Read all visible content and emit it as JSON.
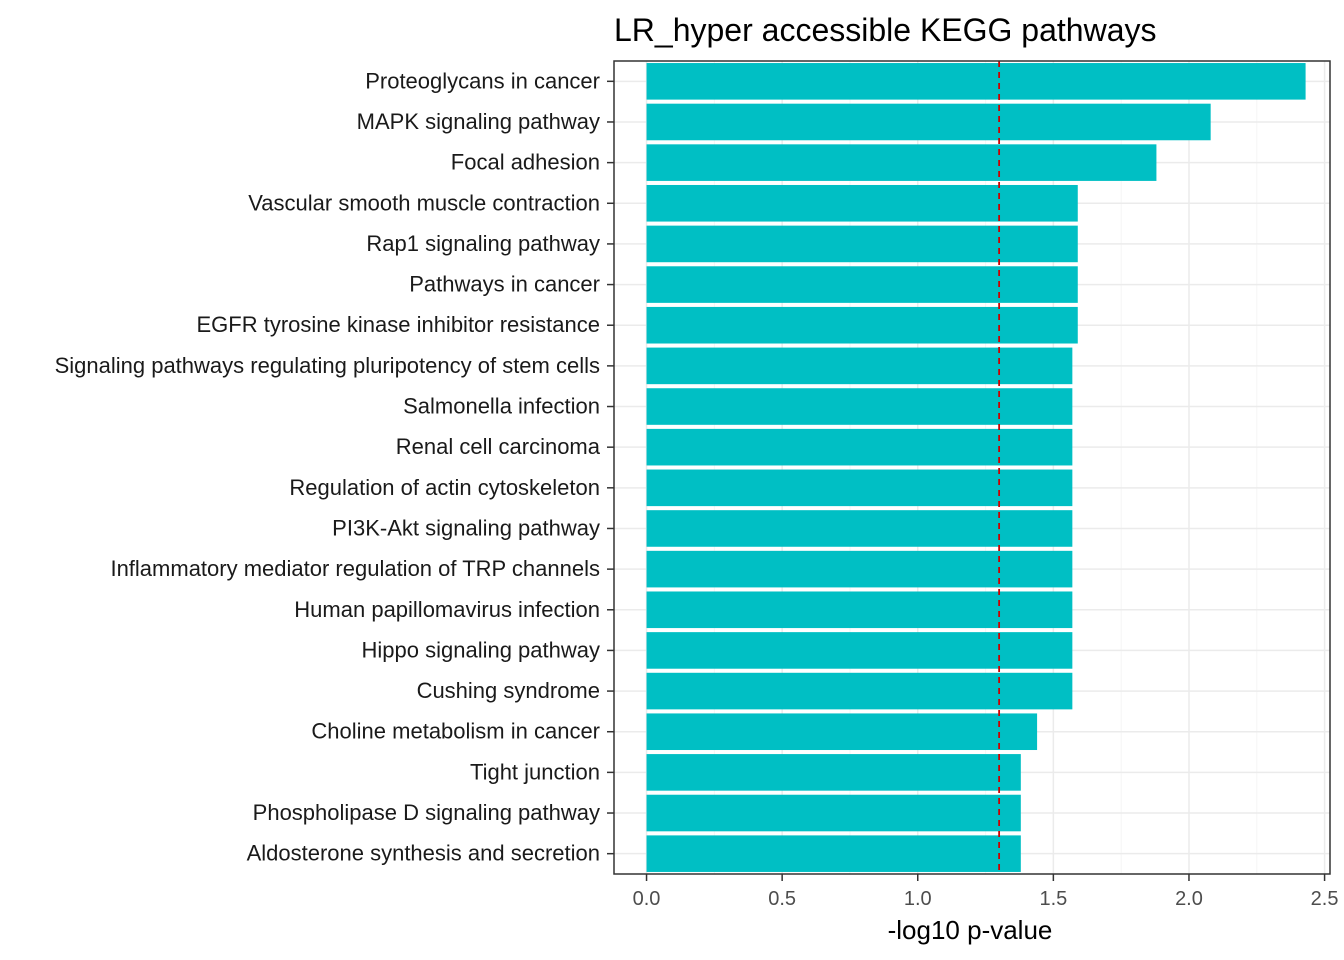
{
  "chart_data": {
    "type": "bar",
    "orientation": "horizontal",
    "title": "LR_hyper accessible KEGG pathways",
    "xlabel": "-log10 p-value",
    "ylabel": "",
    "xlim": [
      -0.12,
      2.52
    ],
    "xticks": [
      0.0,
      0.5,
      1.0,
      1.5,
      2.0,
      2.5
    ],
    "xtick_labels": [
      "0.0",
      "0.5",
      "1.0",
      "1.5",
      "2.0",
      "2.5"
    ],
    "threshold": 1.3,
    "grid": true,
    "categories": [
      "Proteoglycans in cancer",
      "MAPK signaling pathway",
      "Focal adhesion",
      "Vascular smooth muscle contraction",
      "Rap1 signaling pathway",
      "Pathways in cancer",
      "EGFR tyrosine kinase inhibitor resistance",
      "Signaling pathways regulating pluripotency of stem cells",
      "Salmonella infection",
      "Renal cell carcinoma",
      "Regulation of actin cytoskeleton",
      "PI3K-Akt signaling pathway",
      "Inflammatory mediator regulation of TRP channels",
      "Human papillomavirus infection",
      "Hippo signaling pathway",
      "Cushing syndrome",
      "Choline metabolism in cancer",
      "Tight junction",
      "Phospholipase D signaling pathway",
      "Aldosterone synthesis and secretion"
    ],
    "values": [
      2.43,
      2.08,
      1.88,
      1.59,
      1.59,
      1.59,
      1.59,
      1.57,
      1.57,
      1.57,
      1.57,
      1.57,
      1.57,
      1.57,
      1.57,
      1.57,
      1.44,
      1.38,
      1.38,
      1.38
    ],
    "colors": {
      "bar": "#00BFC4",
      "threshold_line": "#CC0000",
      "grid_major": "#EBEBEB",
      "grid_minor": "#F5F5F5",
      "panel_border": "#333333"
    }
  }
}
